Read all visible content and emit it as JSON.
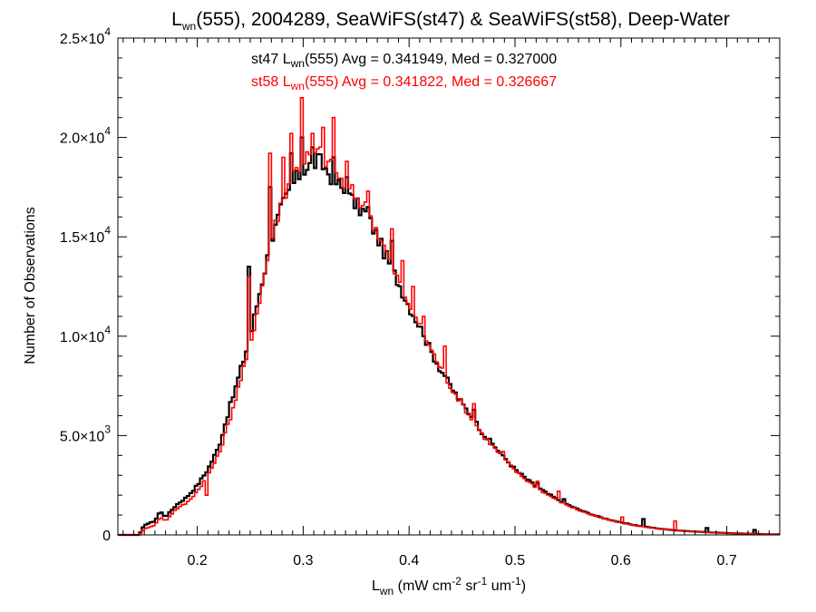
{
  "chart_data": {
    "type": "line",
    "title": {
      "prefix": "L",
      "sub": "wn",
      "rest": "(555), 2004289, SeaWiFS(st47) & SeaWiFS(st58), Deep-Water"
    },
    "annotations": [
      {
        "pre": "st47 L",
        "sub": "wn",
        "post": "(555) Avg = 0.341949, Med = 0.327000",
        "color": "#000000"
      },
      {
        "pre": "st58 L",
        "sub": "wn",
        "post": "(555) Avg = 0.341822, Med = 0.326667",
        "color": "#ff0000"
      }
    ],
    "xlabel": {
      "base": "L",
      "base_sub": "wn",
      "parts": [
        {
          "t": " (mW cm"
        },
        {
          "sup": "-2"
        },
        {
          "t": " sr"
        },
        {
          "sup": "-1"
        },
        {
          "t": " um"
        },
        {
          "sup": "-1"
        },
        {
          "t": ")"
        }
      ]
    },
    "ylabel": "Number of Observations",
    "xlim": [
      0.125,
      0.75
    ],
    "ylim": [
      0,
      25000
    ],
    "x_ticks": [
      {
        "v": 0.2,
        "label": "0.2"
      },
      {
        "v": 0.3,
        "label": "0.3"
      },
      {
        "v": 0.4,
        "label": "0.4"
      },
      {
        "v": 0.5,
        "label": "0.5"
      },
      {
        "v": 0.6,
        "label": "0.6"
      },
      {
        "v": 0.7,
        "label": "0.7"
      }
    ],
    "y_ticks": [
      {
        "v": 0,
        "mant": "0",
        "exp": ""
      },
      {
        "v": 5000,
        "mant": "5.0×10",
        "exp": "3"
      },
      {
        "v": 10000,
        "mant": "1.0×10",
        "exp": "4"
      },
      {
        "v": 15000,
        "mant": "1.5×10",
        "exp": "4"
      },
      {
        "v": 20000,
        "mant": "2.0×10",
        "exp": "4"
      },
      {
        "v": 25000,
        "mant": "2.5×10",
        "exp": "4"
      }
    ],
    "grid": false,
    "series": [
      {
        "name": "st47",
        "color": "#000000",
        "points": [
          [
            0.125,
            0
          ],
          [
            0.145,
            0
          ],
          [
            0.15,
            500
          ],
          [
            0.16,
            700
          ],
          [
            0.165,
            1200
          ],
          [
            0.17,
            900
          ],
          [
            0.18,
            1500
          ],
          [
            0.19,
            1900
          ],
          [
            0.2,
            2500
          ],
          [
            0.21,
            3300
          ],
          [
            0.22,
            4400
          ],
          [
            0.23,
            6300
          ],
          [
            0.24,
            8100
          ],
          [
            0.25,
            10000
          ],
          [
            0.26,
            12500
          ],
          [
            0.27,
            14800
          ],
          [
            0.28,
            16500
          ],
          [
            0.29,
            17600
          ],
          [
            0.3,
            18400
          ],
          [
            0.31,
            18700
          ],
          [
            0.315,
            18800
          ],
          [
            0.32,
            18500
          ],
          [
            0.33,
            17800
          ],
          [
            0.34,
            17200
          ],
          [
            0.35,
            16600
          ],
          [
            0.36,
            16100
          ],
          [
            0.37,
            15000
          ],
          [
            0.38,
            13800
          ],
          [
            0.39,
            12700
          ],
          [
            0.4,
            11500
          ],
          [
            0.41,
            10500
          ],
          [
            0.42,
            9300
          ],
          [
            0.43,
            8300
          ],
          [
            0.44,
            7400
          ],
          [
            0.45,
            6600
          ],
          [
            0.46,
            5900
          ],
          [
            0.47,
            5100
          ],
          [
            0.48,
            4500
          ],
          [
            0.49,
            3900
          ],
          [
            0.5,
            3300
          ],
          [
            0.51,
            2850
          ],
          [
            0.52,
            2450
          ],
          [
            0.53,
            2100
          ],
          [
            0.54,
            1800
          ],
          [
            0.55,
            1520
          ],
          [
            0.56,
            1280
          ],
          [
            0.57,
            1080
          ],
          [
            0.58,
            900
          ],
          [
            0.6,
            620
          ],
          [
            0.62,
            430
          ],
          [
            0.64,
            290
          ],
          [
            0.66,
            200
          ],
          [
            0.68,
            140
          ],
          [
            0.7,
            95
          ],
          [
            0.72,
            60
          ],
          [
            0.74,
            35
          ],
          [
            0.75,
            25
          ]
        ],
        "spikes": [
          [
            0.248,
            13500
          ],
          [
            0.27,
            17500
          ],
          [
            0.29,
            19200
          ],
          [
            0.298,
            20000
          ],
          [
            0.31,
            19500
          ],
          [
            0.328,
            19000
          ],
          [
            0.342,
            18000
          ],
          [
            0.362,
            16500
          ],
          [
            0.385,
            14800
          ],
          [
            0.415,
            10000
          ],
          [
            0.435,
            8000
          ],
          [
            0.462,
            6300
          ],
          [
            0.49,
            4000
          ],
          [
            0.52,
            2600
          ],
          [
            0.545,
            1800
          ],
          [
            0.62,
            800
          ],
          [
            0.68,
            350
          ],
          [
            0.725,
            250
          ]
        ]
      },
      {
        "name": "st58",
        "color": "#ff0000",
        "points": [
          [
            0.125,
            0
          ],
          [
            0.145,
            0
          ],
          [
            0.15,
            300
          ],
          [
            0.16,
            500
          ],
          [
            0.165,
            900
          ],
          [
            0.17,
            700
          ],
          [
            0.18,
            1300
          ],
          [
            0.19,
            1600
          ],
          [
            0.2,
            2200
          ],
          [
            0.21,
            3000
          ],
          [
            0.22,
            4000
          ],
          [
            0.23,
            5700
          ],
          [
            0.24,
            7600
          ],
          [
            0.25,
            9500
          ],
          [
            0.26,
            12200
          ],
          [
            0.27,
            14800
          ],
          [
            0.28,
            16900
          ],
          [
            0.29,
            18100
          ],
          [
            0.3,
            18900
          ],
          [
            0.31,
            19200
          ],
          [
            0.315,
            19300
          ],
          [
            0.32,
            19000
          ],
          [
            0.33,
            18200
          ],
          [
            0.34,
            17600
          ],
          [
            0.35,
            17000
          ],
          [
            0.36,
            16400
          ],
          [
            0.37,
            15300
          ],
          [
            0.38,
            14000
          ],
          [
            0.39,
            12800
          ],
          [
            0.4,
            11600
          ],
          [
            0.41,
            10600
          ],
          [
            0.42,
            9400
          ],
          [
            0.43,
            8400
          ],
          [
            0.44,
            7400
          ],
          [
            0.45,
            6600
          ],
          [
            0.46,
            5800
          ],
          [
            0.47,
            5000
          ],
          [
            0.48,
            4400
          ],
          [
            0.49,
            3800
          ],
          [
            0.5,
            3250
          ],
          [
            0.51,
            2800
          ],
          [
            0.52,
            2400
          ],
          [
            0.53,
            2050
          ],
          [
            0.54,
            1750
          ],
          [
            0.55,
            1480
          ],
          [
            0.56,
            1250
          ],
          [
            0.57,
            1050
          ],
          [
            0.58,
            880
          ],
          [
            0.6,
            600
          ],
          [
            0.62,
            420
          ],
          [
            0.64,
            280
          ],
          [
            0.66,
            190
          ],
          [
            0.68,
            135
          ],
          [
            0.7,
            90
          ],
          [
            0.72,
            55
          ],
          [
            0.74,
            32
          ],
          [
            0.75,
            22
          ]
        ],
        "spikes": [
          [
            0.208,
            2000
          ],
          [
            0.248,
            13000
          ],
          [
            0.27,
            19200
          ],
          [
            0.282,
            19000
          ],
          [
            0.29,
            20200
          ],
          [
            0.3,
            22000
          ],
          [
            0.31,
            20200
          ],
          [
            0.318,
            20500
          ],
          [
            0.328,
            21000
          ],
          [
            0.342,
            18800
          ],
          [
            0.362,
            17300
          ],
          [
            0.385,
            15400
          ],
          [
            0.395,
            13800
          ],
          [
            0.405,
            12500
          ],
          [
            0.415,
            11000
          ],
          [
            0.434,
            9500
          ],
          [
            0.462,
            6600
          ],
          [
            0.49,
            4200
          ],
          [
            0.52,
            2700
          ],
          [
            0.54,
            2200
          ],
          [
            0.6,
            900
          ],
          [
            0.65,
            700
          ]
        ]
      }
    ]
  }
}
